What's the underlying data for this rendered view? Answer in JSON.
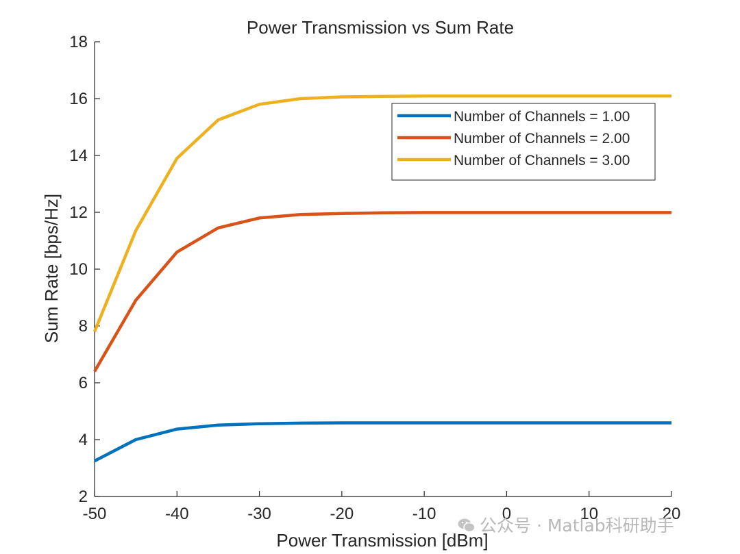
{
  "chart_data": {
    "type": "line",
    "title": "Power Transmission vs Sum Rate",
    "xlabel": "Power Transmission [dBm]",
    "ylabel": "Sum Rate [bps/Hz]",
    "xlim": [
      -50,
      20
    ],
    "ylim": [
      2,
      18
    ],
    "xticks": [
      -50,
      -40,
      -30,
      -20,
      -10,
      0,
      10,
      20
    ],
    "yticks": [
      2,
      4,
      6,
      8,
      10,
      12,
      14,
      16,
      18
    ],
    "grid": false,
    "legend_position": "top-right",
    "x": [
      -50,
      -45,
      -40,
      -35,
      -30,
      -25,
      -20,
      -15,
      -10,
      -5,
      0,
      5,
      10,
      15,
      20
    ],
    "series": [
      {
        "name": "Number of Channels = 1.00",
        "color": "#0072BD",
        "values": [
          3.25,
          4.0,
          4.37,
          4.51,
          4.56,
          4.58,
          4.59,
          4.59,
          4.59,
          4.59,
          4.59,
          4.59,
          4.59,
          4.59,
          4.59
        ]
      },
      {
        "name": "Number of Channels = 2.00",
        "color": "#D95319",
        "values": [
          6.4,
          8.9,
          10.6,
          11.45,
          11.8,
          11.92,
          11.96,
          11.98,
          11.99,
          11.99,
          11.99,
          11.99,
          11.99,
          11.99,
          11.99
        ]
      },
      {
        "name": "Number of Channels = 3.00",
        "color": "#EDB120",
        "values": [
          7.8,
          11.35,
          13.9,
          15.25,
          15.8,
          16.0,
          16.06,
          16.08,
          16.09,
          16.09,
          16.09,
          16.09,
          16.09,
          16.09,
          16.09
        ]
      }
    ]
  },
  "watermark": {
    "icon": "wechat-icon",
    "text": "公众号 · Matlab科研助手"
  }
}
